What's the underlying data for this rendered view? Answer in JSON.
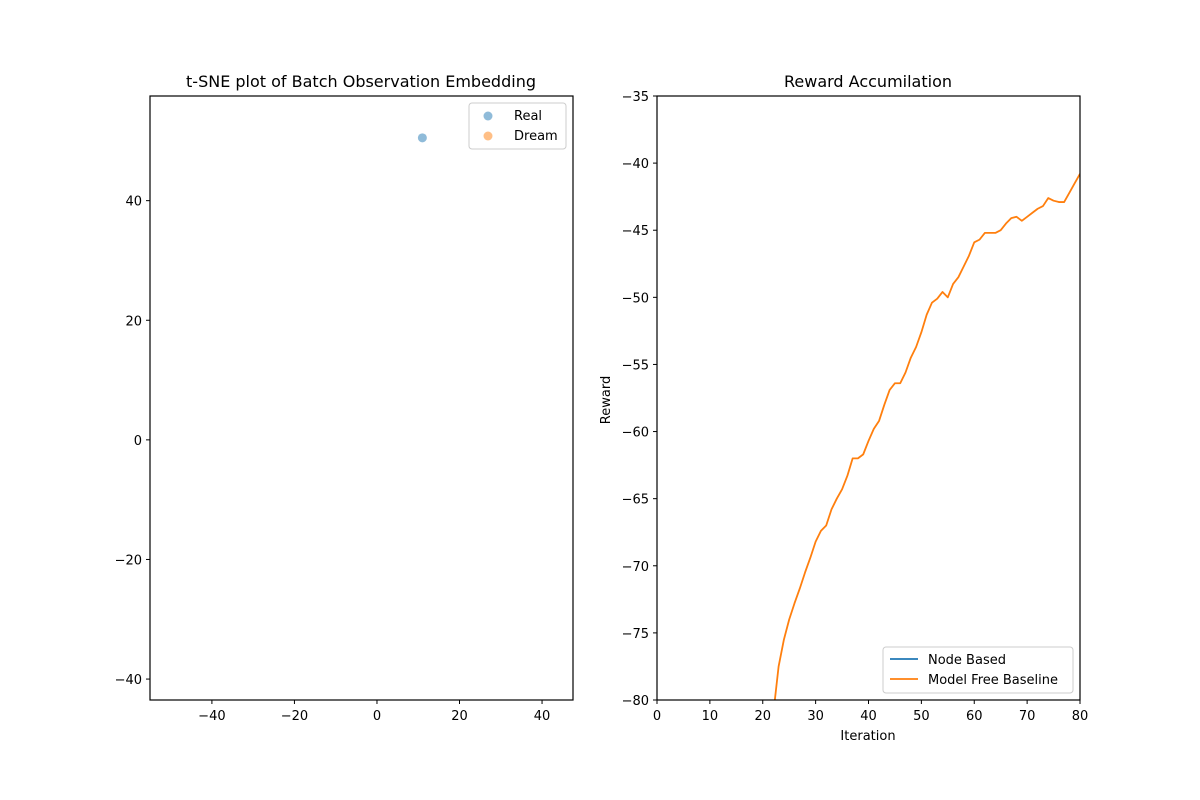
{
  "chart_data": [
    {
      "type": "scatter",
      "title": "t-SNE plot of Batch Observation Embedding",
      "xlabel": "",
      "ylabel": "",
      "xlim": [
        -55,
        47.5
      ],
      "ylim": [
        -43.5,
        57.5
      ],
      "xticks": [
        -40,
        -20,
        0,
        20,
        40
      ],
      "xtick_labels": [
        "−40",
        "−20",
        "0",
        "20",
        "40"
      ],
      "yticks": [
        -40,
        -20,
        0,
        20,
        40
      ],
      "ytick_labels": [
        "−40",
        "−20",
        "0",
        "20",
        "40"
      ],
      "legend_position": "top-right",
      "series": [
        {
          "name": "Real",
          "color": "#1f77b4",
          "points": [
            [
              11,
              50.5
            ]
          ]
        },
        {
          "name": "Dream",
          "color": "#ff7f0e",
          "points": []
        }
      ]
    },
    {
      "type": "line",
      "title": "Reward Accumilation",
      "xlabel": "Iteration",
      "ylabel": "Reward",
      "xlim": [
        0,
        80
      ],
      "ylim": [
        -80,
        -35
      ],
      "xticks": [
        0,
        10,
        20,
        30,
        40,
        50,
        60,
        70,
        80
      ],
      "xtick_labels": [
        "0",
        "10",
        "20",
        "30",
        "40",
        "50",
        "60",
        "70",
        "80"
      ],
      "yticks": [
        -80,
        -75,
        -70,
        -65,
        -60,
        -55,
        -50,
        -45,
        -40,
        -35
      ],
      "ytick_labels": [
        "−80",
        "−75",
        "−70",
        "−65",
        "−60",
        "−55",
        "−50",
        "−45",
        "−40",
        "−35"
      ],
      "legend_position": "bottom-right",
      "series": [
        {
          "name": "Node Based",
          "color": "#1f77b4",
          "x": [],
          "y": []
        },
        {
          "name": "Model Free Baseline",
          "color": "#ff7f0e",
          "x": [
            20,
            22,
            23,
            24,
            25,
            26,
            27,
            28,
            29,
            30,
            31,
            32,
            33,
            34,
            35,
            36,
            37,
            38,
            39,
            40,
            41,
            42,
            43,
            44,
            45,
            46,
            47,
            48,
            49,
            50,
            51,
            52,
            53,
            54,
            55,
            56,
            57,
            58,
            59,
            60,
            61,
            62,
            63,
            64,
            65,
            66,
            67,
            68,
            69,
            70,
            71,
            72,
            73,
            74,
            75,
            76,
            77,
            78,
            79,
            80
          ],
          "y": [
            -90,
            -81,
            -77.5,
            -75.5,
            -74,
            -72.8,
            -71.7,
            -70.5,
            -69.4,
            -68.2,
            -67.4,
            -67,
            -65.8,
            -65,
            -64.3,
            -63.3,
            -62,
            -62,
            -61.7,
            -60.7,
            -59.8,
            -59.2,
            -58,
            -56.9,
            -56.4,
            -56.4,
            -55.6,
            -54.5,
            -53.7,
            -52.6,
            -51.3,
            -50.4,
            -50.1,
            -49.6,
            -50,
            -49,
            -48.5,
            -47.7,
            -46.9,
            -45.9,
            -45.7,
            -45.2,
            -45.2,
            -45.2,
            -45,
            -44.5,
            -44.1,
            -44,
            -44.3,
            -44,
            -43.7,
            -43.4,
            -43.2,
            -42.6,
            -42.8,
            -42.9,
            -42.9,
            -42.2,
            -41.5,
            -40.8
          ]
        }
      ]
    }
  ]
}
